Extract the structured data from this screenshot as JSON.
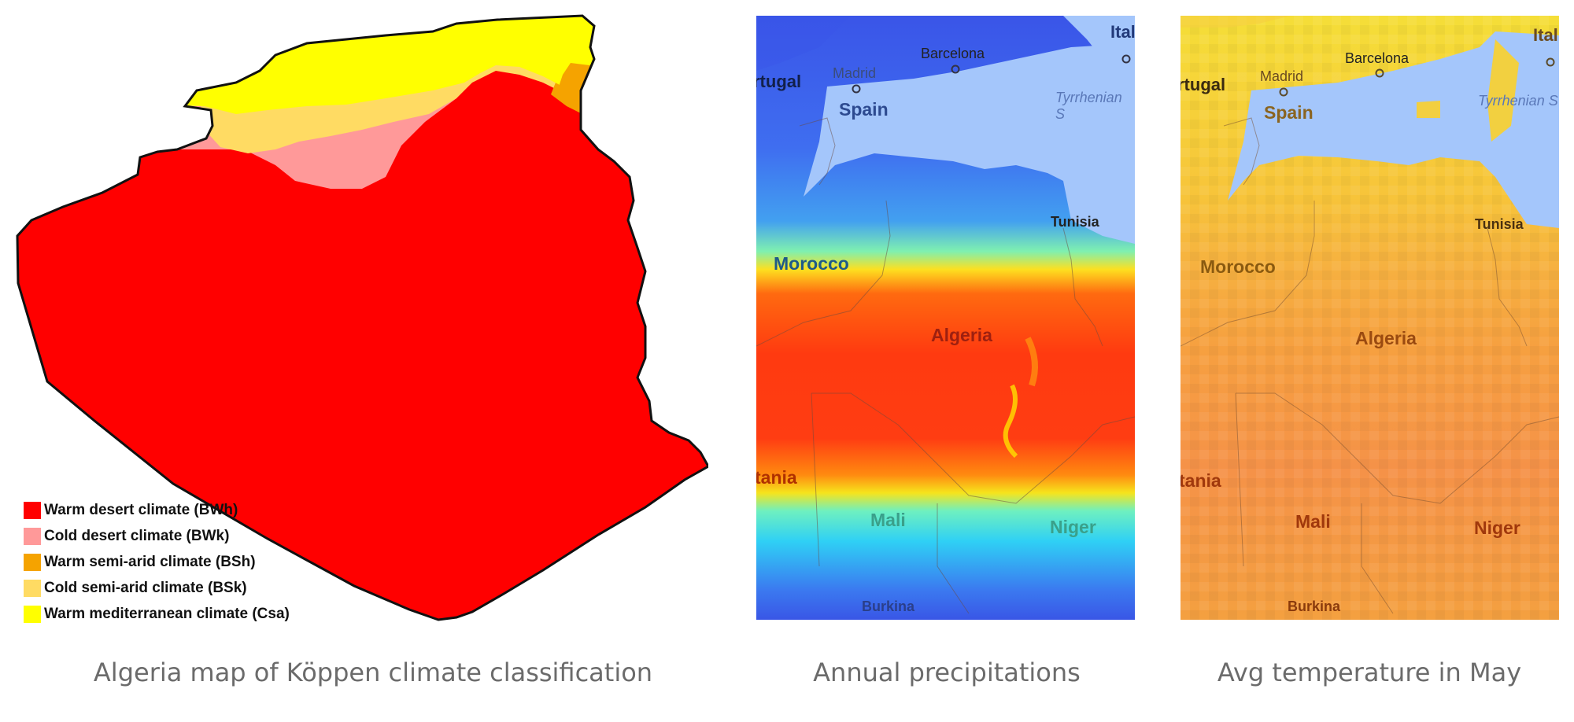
{
  "koppen_map": {
    "legend": [
      {
        "label": "Warm desert climate (BWh)",
        "color": "#ff0000"
      },
      {
        "label": "Cold desert climate (BWk)",
        "color": "#ff9999"
      },
      {
        "label": "Warm semi-arid climate (BSh)",
        "color": "#f5a300"
      },
      {
        "label": "Cold semi-arid climate (BSk)",
        "color": "#ffdb63"
      },
      {
        "label": "Warm mediterranean climate (Csa)",
        "color": "#ffff00"
      }
    ]
  },
  "precip_map": {
    "labels": {
      "portugal": "rtugal",
      "madrid": "Madrid",
      "barcelona": "Barcelona",
      "italy": "Ital",
      "spain": "Spain",
      "tyrrhenian": "Tyrrhenian S",
      "tunisia": "Tunisia",
      "morocco": "Morocco",
      "algeria": "Algeria",
      "mauritania": "tania",
      "mali": "Mali",
      "niger": "Niger",
      "burkina": "Burkina"
    }
  },
  "temp_map": {
    "labels": {
      "portugal": "rtugal",
      "madrid": "Madrid",
      "barcelona": "Barcelona",
      "italy": "Ital",
      "spain": "Spain",
      "tyrrhenian": "Tyrrhenian S",
      "tunisia": "Tunisia",
      "morocco": "Morocco",
      "algeria": "Algeria",
      "mauritania": "tania",
      "mali": "Mali",
      "niger": "Niger",
      "burkina": "Burkina"
    }
  },
  "captions": {
    "koppen": "Algeria map of Köppen climate classification",
    "precip": "Annual  precipitations",
    "temp": "Avg temperature in May"
  }
}
